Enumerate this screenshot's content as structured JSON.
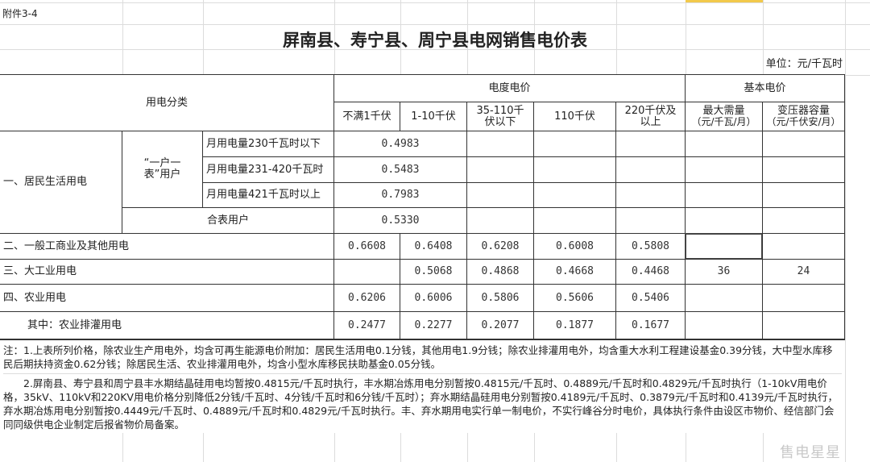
{
  "attachment": "附件3-4",
  "title": "屏南县、寿宁县、周宁县电网销售电价表",
  "unit": "单位：元/千瓦时",
  "header": {
    "category": "用电分类",
    "energy_price": "电度电价",
    "basic_price": "基本电价",
    "voltage_levels": [
      "不满1千伏",
      "1-10千伏",
      "35-110千伏以下",
      "110千伏",
      "220千伏及以上"
    ],
    "max_demand": "最大需量",
    "max_demand_unit": "（元/千瓦/月）",
    "transformer": "变压器容量",
    "transformer_unit": "（元/千伏安/月）"
  },
  "residential": {
    "label": "一、居民生活用电",
    "one_meter_label": "“一户一表”用户",
    "tiers": [
      {
        "label": "月用电量230千瓦时以下",
        "price": "0.4983"
      },
      {
        "label": "月用电量231-420千瓦时",
        "price": "0.5483"
      },
      {
        "label": "月用电量421千瓦时以上",
        "price": "0.7983"
      }
    ],
    "shared_meter": {
      "label": "合表用户",
      "price": "0.5330"
    }
  },
  "rows": [
    {
      "label": "二、一般工商业及其他用电",
      "values": [
        "0.6608",
        "0.6408",
        "0.6208",
        "0.6008",
        "0.5808"
      ],
      "max_demand": "",
      "transformer": ""
    },
    {
      "label": "三、大工业用电",
      "values": [
        "",
        "0.5068",
        "0.4868",
        "0.4668",
        "0.4468"
      ],
      "max_demand": "36",
      "transformer": "24"
    },
    {
      "label": "四、农业用电",
      "values": [
        "0.6206",
        "0.6006",
        "0.5806",
        "0.5606",
        "0.5406"
      ],
      "max_demand": "",
      "transformer": ""
    },
    {
      "label": "其中：农业排灌用电",
      "values": [
        "0.2477",
        "0.2277",
        "0.2077",
        "0.1877",
        "0.1677"
      ],
      "max_demand": "",
      "transformer": ""
    }
  ],
  "notes": [
    "注：1.上表所列价格，除农业生产用电外，均含可再生能源电价附加：居民生活用电0.1分钱，其他用电1.9分钱；除农业排灌用电外，均含重大水利工程建设基金0.39分钱，大中型水库移民后期扶持资金0.62分钱；除居民生活、农业排灌用电外，均含小型水库移民扶助基金0.05分钱。",
    "2.屏南县、寿宁县和周宁县丰水期结晶硅用电均暂按0.4815元/千瓦时执行，丰水期冶炼用电分别暂按0.4815元/千瓦时、0.4889元/千瓦时和0.4829元/千瓦时执行（1-10kV用电价格，35kV、110kV和220KV用电价格分别降低2分钱/千瓦时、4分钱/千瓦时和6分钱/千瓦时）；弃水期结晶硅用电分别暂按0.4189元/千瓦时、0.3879元/千瓦时和0.4139元/千瓦时执行，弃水期冶炼用电分别暂按0.4449元/千瓦时、0.4889元/千瓦时和0.4829元/千瓦时执行。丰、弃水期用电实行单一制电价，不实行峰谷分时电价，具体执行条件由设区市物价、经信部门会同同级供电企业制定后报省物价局备案。"
  ],
  "watermark": "售电星星"
}
